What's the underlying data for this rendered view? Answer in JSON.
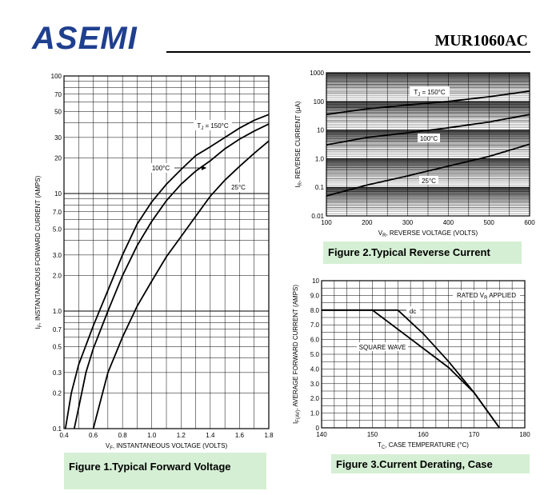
{
  "header": {
    "logo": "ASEMI",
    "part_number": "MUR1060AC"
  },
  "chart_data": [
    {
      "type": "line",
      "caption": "Figure 1.Typical  Forward  Voltage",
      "xlabel": "V",
      "xlabel_sub": "F",
      "xlabel_rest": ", INSTANTANEOUS VOLTAGE (VOLTS)",
      "ylabel": "I",
      "ylabel_sub": "F",
      "ylabel_rest": ", INSTANTANEOUS FORWARD CURRENT (AMPS)",
      "xlim": [
        0.4,
        1.8
      ],
      "ylim": [
        0.1,
        100
      ],
      "yscale": "log",
      "grid": true,
      "x_ticks": [
        "0.4",
        "0.6",
        "0.8",
        "1.0",
        "1.2",
        "1.4",
        "1.6",
        "1.8"
      ],
      "y_ticks": [
        "0.1",
        "0.2",
        "0.3",
        "0.5",
        "0.7",
        "1.0",
        "2.0",
        "3.0",
        "5.0",
        "7.0",
        "10",
        "20",
        "30",
        "50",
        "70",
        "100"
      ],
      "series": [
        {
          "name": "T_J = 150°C",
          "x": [
            0.41,
            0.45,
            0.5,
            0.6,
            0.7,
            0.8,
            0.9,
            1.0,
            1.1,
            1.2,
            1.3,
            1.4,
            1.5,
            1.6,
            1.7,
            1.8
          ],
          "y": [
            0.1,
            0.2,
            0.35,
            0.75,
            1.5,
            3.0,
            5.5,
            8.5,
            12,
            16,
            21,
            25,
            30,
            36,
            42,
            47
          ]
        },
        {
          "name": "100°C",
          "x": [
            0.47,
            0.5,
            0.55,
            0.6,
            0.7,
            0.8,
            0.9,
            1.0,
            1.1,
            1.2,
            1.3,
            1.4,
            1.5,
            1.6,
            1.7,
            1.8
          ],
          "y": [
            0.1,
            0.15,
            0.3,
            0.48,
            1.0,
            2.0,
            3.6,
            5.8,
            8.7,
            12,
            15.5,
            19,
            24,
            29,
            34,
            39
          ]
        },
        {
          "name": "25°C",
          "x": [
            0.6,
            0.7,
            0.8,
            0.9,
            1.0,
            1.1,
            1.2,
            1.3,
            1.4,
            1.5,
            1.6,
            1.7,
            1.8
          ],
          "y": [
            0.1,
            0.3,
            0.6,
            1.1,
            1.8,
            2.9,
            4.3,
            6.4,
            9.5,
            13,
            17,
            22,
            28
          ]
        }
      ],
      "annotations": [
        "T_J = 150°C",
        "100°C",
        "25°C"
      ]
    },
    {
      "type": "line",
      "caption": "Figure 2.Typical  Reverse  Current",
      "xlabel": "V",
      "xlabel_sub": "R",
      "xlabel_rest": ", REVERSE VOLTAGE (VOLTS)",
      "ylabel": "I",
      "ylabel_sub": "R",
      "ylabel_rest": ", REVERSE CURRENT (μA)",
      "xlim": [
        100,
        600
      ],
      "ylim": [
        0.01,
        1000
      ],
      "yscale": "log",
      "grid": true,
      "x_ticks": [
        "100",
        "200",
        "300",
        "400",
        "500",
        "600"
      ],
      "y_ticks": [
        "0.01",
        "0.1",
        "1.0",
        "10",
        "100",
        "1000"
      ],
      "series": [
        {
          "name": "T_J = 150°C",
          "x": [
            100,
            200,
            300,
            400,
            500,
            600
          ],
          "y": [
            35,
            55,
            75,
            100,
            145,
            230
          ]
        },
        {
          "name": "100°C",
          "x": [
            100,
            200,
            300,
            400,
            500,
            600
          ],
          "y": [
            3.0,
            5.5,
            8,
            12,
            19,
            35
          ]
        },
        {
          "name": "25°C",
          "x": [
            100,
            200,
            300,
            400,
            500,
            600
          ],
          "y": [
            0.05,
            0.12,
            0.25,
            0.55,
            1.2,
            3.2
          ]
        }
      ],
      "annotations": [
        "T_J = 150°C",
        "100°C",
        "25°C"
      ]
    },
    {
      "type": "line",
      "caption": "Figure 3.Current  Derating,  Case",
      "xlabel": "T",
      "xlabel_sub": "C",
      "xlabel_rest": ", CASE TEMPERATURE (°C)",
      "ylabel": "I",
      "ylabel_sub": "F(AV)",
      "ylabel_rest": ", AVERAGE FORWARD CURRENT (AMPS)",
      "xlim": [
        140,
        180
      ],
      "ylim": [
        0,
        10
      ],
      "grid": true,
      "x_ticks": [
        "140",
        "150",
        "160",
        "170",
        "180"
      ],
      "y_ticks": [
        "0",
        "1.0",
        "2.0",
        "3.0",
        "4.0",
        "5.0",
        "6.0",
        "7.0",
        "8.0",
        "9.0",
        "10"
      ],
      "series": [
        {
          "name": "dc",
          "x": [
            140,
            155,
            160,
            165,
            170,
            175
          ],
          "y": [
            8,
            8,
            6.4,
            4.5,
            2.4,
            0
          ]
        },
        {
          "name": "SQUARE WAVE",
          "x": [
            140,
            150,
            160,
            165,
            170,
            175
          ],
          "y": [
            8,
            8,
            5.4,
            4.1,
            2.4,
            0
          ]
        }
      ],
      "annotations": [
        "RATED V_R APPLIED",
        "dc",
        "SQUARE WAVE"
      ],
      "annotation_rated": "RATED V",
      "annotation_rated_sub": "R",
      "annotation_rated_rest": " APPLIED"
    }
  ]
}
